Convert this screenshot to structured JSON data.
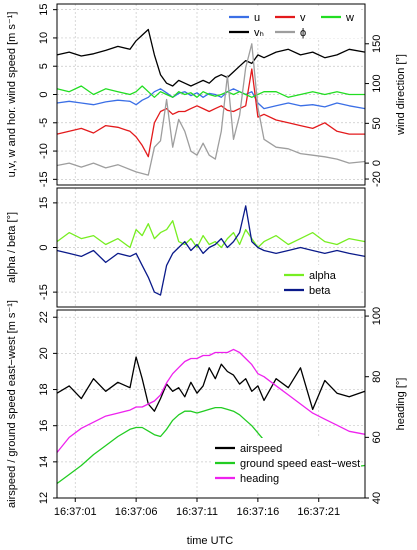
{
  "colors": {
    "u": "#3b6fe6",
    "v": "#e31a1c",
    "w": "#22dd22",
    "v_h": "#000000",
    "phi": "#9e9e9e",
    "alpha": "#77ee22",
    "beta": "#0a1a8a",
    "airspeed": "#000000",
    "ground_speed": "#22cc22",
    "heading": "#ee22ee"
  },
  "shared_x": {
    "xlabel": "time UTC",
    "tick_values": [
      1,
      6,
      11,
      16,
      21
    ],
    "tick_labels": [
      "16:37:01",
      "16:37:06",
      "16:37:11",
      "16:37:16",
      "16:37:21"
    ],
    "xlim": [
      -0.5,
      24.8
    ]
  },
  "chart_data": [
    {
      "type": "line",
      "ylabel": "u,v, w and hor. wind speed [m s⁻¹]",
      "ylabel_right": "wind direction [°]",
      "ylim": [
        -16,
        16
      ],
      "y_ticks": [
        -15,
        -10,
        -5,
        0,
        5,
        10,
        15
      ],
      "ylim_right": [
        -27.5,
        200
      ],
      "y_ticks_right": [
        -20,
        0,
        50,
        100,
        150
      ],
      "grid": true,
      "legend_position": "top-right",
      "x": [
        -0.5,
        0.5,
        1.5,
        2.5,
        3.5,
        4.5,
        5.5,
        6,
        6.5,
        7,
        7.5,
        8,
        8.5,
        9,
        9.5,
        10,
        10.5,
        11,
        11.5,
        12,
        12.5,
        13,
        13.5,
        14,
        14.5,
        15,
        15.5,
        16,
        16.5,
        17.5,
        18.5,
        19.5,
        20.5,
        21.5,
        22.5,
        23.5,
        24.8
      ],
      "series": [
        {
          "name": "u",
          "key": "u",
          "axis": "left",
          "values": [
            -1.5,
            -1.2,
            -1.5,
            -1.8,
            -1.3,
            -1.0,
            -1.2,
            -1.8,
            -1.0,
            -0.5,
            0.5,
            1.0,
            0.3,
            -0.5,
            0.2,
            0.5,
            -0.2,
            0.3,
            -0.5,
            0.2,
            0.0,
            -0.5,
            0.5,
            1.0,
            0.5,
            0.0,
            0.5,
            -1.5,
            -2.5,
            -2.0,
            -1.5,
            -2.0,
            -1.8,
            -2.2,
            -1.5,
            -2.0,
            -2.5
          ]
        },
        {
          "name": "v",
          "key": "v",
          "axis": "left",
          "values": [
            -7.0,
            -6.5,
            -6.0,
            -6.8,
            -5.5,
            -5.8,
            -6.5,
            -7.5,
            -9.0,
            -11.0,
            -5.0,
            -3.0,
            -2.5,
            -3.5,
            -3.0,
            -3.0,
            -2.5,
            -2.0,
            -2.5,
            -3.0,
            -2.5,
            -2.0,
            -2.8,
            -3.0,
            -2.5,
            -2.0,
            4.5,
            -4.0,
            -3.5,
            -4.5,
            -5.0,
            -5.5,
            -6.0,
            -5.0,
            -6.5,
            -7.0,
            -7.0
          ]
        },
        {
          "name": "w",
          "key": "w",
          "axis": "left",
          "values": [
            1.0,
            0.5,
            1.5,
            0.0,
            1.0,
            0.5,
            0.0,
            0.5,
            1.5,
            0.5,
            -0.5,
            0.5,
            0.0,
            -0.5,
            0.5,
            0.0,
            0.3,
            -0.5,
            0.5,
            0.0,
            -0.3,
            0.0,
            0.5,
            0.0,
            0.5,
            0.0,
            -0.5,
            0.0,
            0.5,
            0.5,
            -0.5,
            0.0,
            0.5,
            0.0,
            0.5,
            0.0,
            0.0
          ]
        },
        {
          "name": "vₕ",
          "key": "v_h",
          "axis": "left",
          "values": [
            7.0,
            7.5,
            6.8,
            7.2,
            7.8,
            8.5,
            8.0,
            9.5,
            10.5,
            11.5,
            7.0,
            3.5,
            2.0,
            1.5,
            2.5,
            2.0,
            1.5,
            2.0,
            2.5,
            2.0,
            3.0,
            3.5,
            3.0,
            4.0,
            5.0,
            6.0,
            5.5,
            7.0,
            6.5,
            7.5,
            8.0,
            7.0,
            7.5,
            6.5,
            7.0,
            8.0,
            7.5
          ]
        },
        {
          "name": "ϕ",
          "key": "phi",
          "axis": "right",
          "values": [
            -3,
            0,
            -5,
            0,
            -6,
            -2,
            -8,
            -11,
            -13,
            -15,
            20,
            28,
            80,
            20,
            55,
            40,
            15,
            10,
            25,
            10,
            5,
            40,
            110,
            30,
            60,
            120,
            150,
            70,
            30,
            20,
            18,
            12,
            10,
            8,
            5,
            0,
            2
          ]
        }
      ]
    },
    {
      "type": "line",
      "ylabel": "alpha / beta [°]",
      "ylim": [
        -20,
        20
      ],
      "y_ticks": [
        -15,
        0,
        15
      ],
      "grid": true,
      "legend_position": "bottom-right",
      "x": [
        -0.5,
        0.5,
        1.5,
        2.5,
        3.5,
        4.5,
        5.5,
        6,
        6.5,
        7,
        7.5,
        8,
        8.5,
        9,
        9.5,
        10,
        10.5,
        11,
        11.5,
        12,
        12.5,
        13,
        13.5,
        14,
        14.5,
        15,
        15.5,
        16,
        16.5,
        17.5,
        18.5,
        19.5,
        20.5,
        21.5,
        22.5,
        23.5,
        24.8
      ],
      "series": [
        {
          "name": "alpha",
          "key": "alpha",
          "values": [
            2,
            5,
            3,
            4,
            1,
            3,
            0,
            6,
            4,
            8,
            3,
            5,
            6,
            9,
            2,
            1,
            3,
            0,
            4,
            1,
            2,
            0,
            3,
            5,
            1,
            6,
            3,
            0,
            2,
            4,
            1,
            3,
            5,
            2,
            1,
            3,
            2
          ]
        },
        {
          "name": "beta",
          "key": "beta",
          "values": [
            -1,
            -2,
            -3,
            -1,
            -5,
            -2,
            -3,
            -2,
            -6,
            -10,
            -15,
            -16,
            -6,
            -2,
            0,
            2,
            -1,
            1,
            -2,
            0,
            1,
            3,
            0,
            2,
            5,
            14,
            2,
            0,
            -1,
            -2,
            -1,
            0,
            -1,
            -2,
            -1,
            -2,
            -3
          ]
        }
      ]
    },
    {
      "type": "line",
      "ylabel": "airspeed / ground speed east−west [m s⁻¹]",
      "ylabel_right": "heading [°]",
      "ylim": [
        12,
        22.4
      ],
      "y_ticks": [
        12,
        14,
        16,
        18,
        20,
        22
      ],
      "ylim_right": [
        40,
        102
      ],
      "y_ticks_right": [
        40,
        60,
        80,
        100
      ],
      "grid": true,
      "legend_position": "bottom-right",
      "x": [
        -0.5,
        0.5,
        1.5,
        2.5,
        3.5,
        4.5,
        5.5,
        6,
        6.5,
        7,
        7.5,
        8,
        8.5,
        9,
        9.5,
        10,
        10.5,
        11,
        11.5,
        12,
        12.5,
        13,
        13.5,
        14,
        14.5,
        15,
        15.5,
        16,
        16.5,
        17.5,
        18.5,
        19.5,
        20.5,
        21.5,
        22.5,
        23.5,
        24.8
      ],
      "series": [
        {
          "name": "airspeed",
          "key": "airspeed",
          "axis": "left",
          "values": [
            17.8,
            18.2,
            17.5,
            18.6,
            17.9,
            18.4,
            18.1,
            19.8,
            18.6,
            17.2,
            16.8,
            17.5,
            18.3,
            17.9,
            18.1,
            17.6,
            18.4,
            17.8,
            18.2,
            19.2,
            18.6,
            19.4,
            19.0,
            18.8,
            18.3,
            18.6,
            17.9,
            18.2,
            17.4,
            18.6,
            18.1,
            19.2,
            16.9,
            18.5,
            17.8,
            17.6,
            17.9
          ]
        },
        {
          "name": "ground speed east−west",
          "key": "ground_speed",
          "axis": "left",
          "values": [
            12.8,
            13.3,
            13.8,
            14.4,
            14.9,
            15.4,
            15.8,
            15.9,
            15.9,
            15.7,
            15.5,
            15.4,
            15.8,
            16.3,
            16.6,
            16.8,
            16.8,
            16.7,
            16.8,
            16.9,
            17.0,
            17.0,
            16.9,
            16.8,
            16.6,
            16.3,
            16.0,
            15.6,
            15.2,
            14.6,
            14.2,
            13.9,
            13.7,
            13.6,
            13.7,
            13.7,
            13.8
          ]
        },
        {
          "name": "heading",
          "key": "heading",
          "axis": "right",
          "values": [
            55,
            60,
            63,
            65,
            67,
            68,
            69,
            70,
            70,
            71,
            72,
            74,
            78,
            81,
            83,
            85,
            86,
            86,
            87,
            87,
            88,
            88,
            88,
            89,
            88,
            86,
            84,
            81,
            80,
            77,
            74,
            71,
            68,
            66,
            64,
            62,
            61
          ]
        }
      ]
    }
  ]
}
